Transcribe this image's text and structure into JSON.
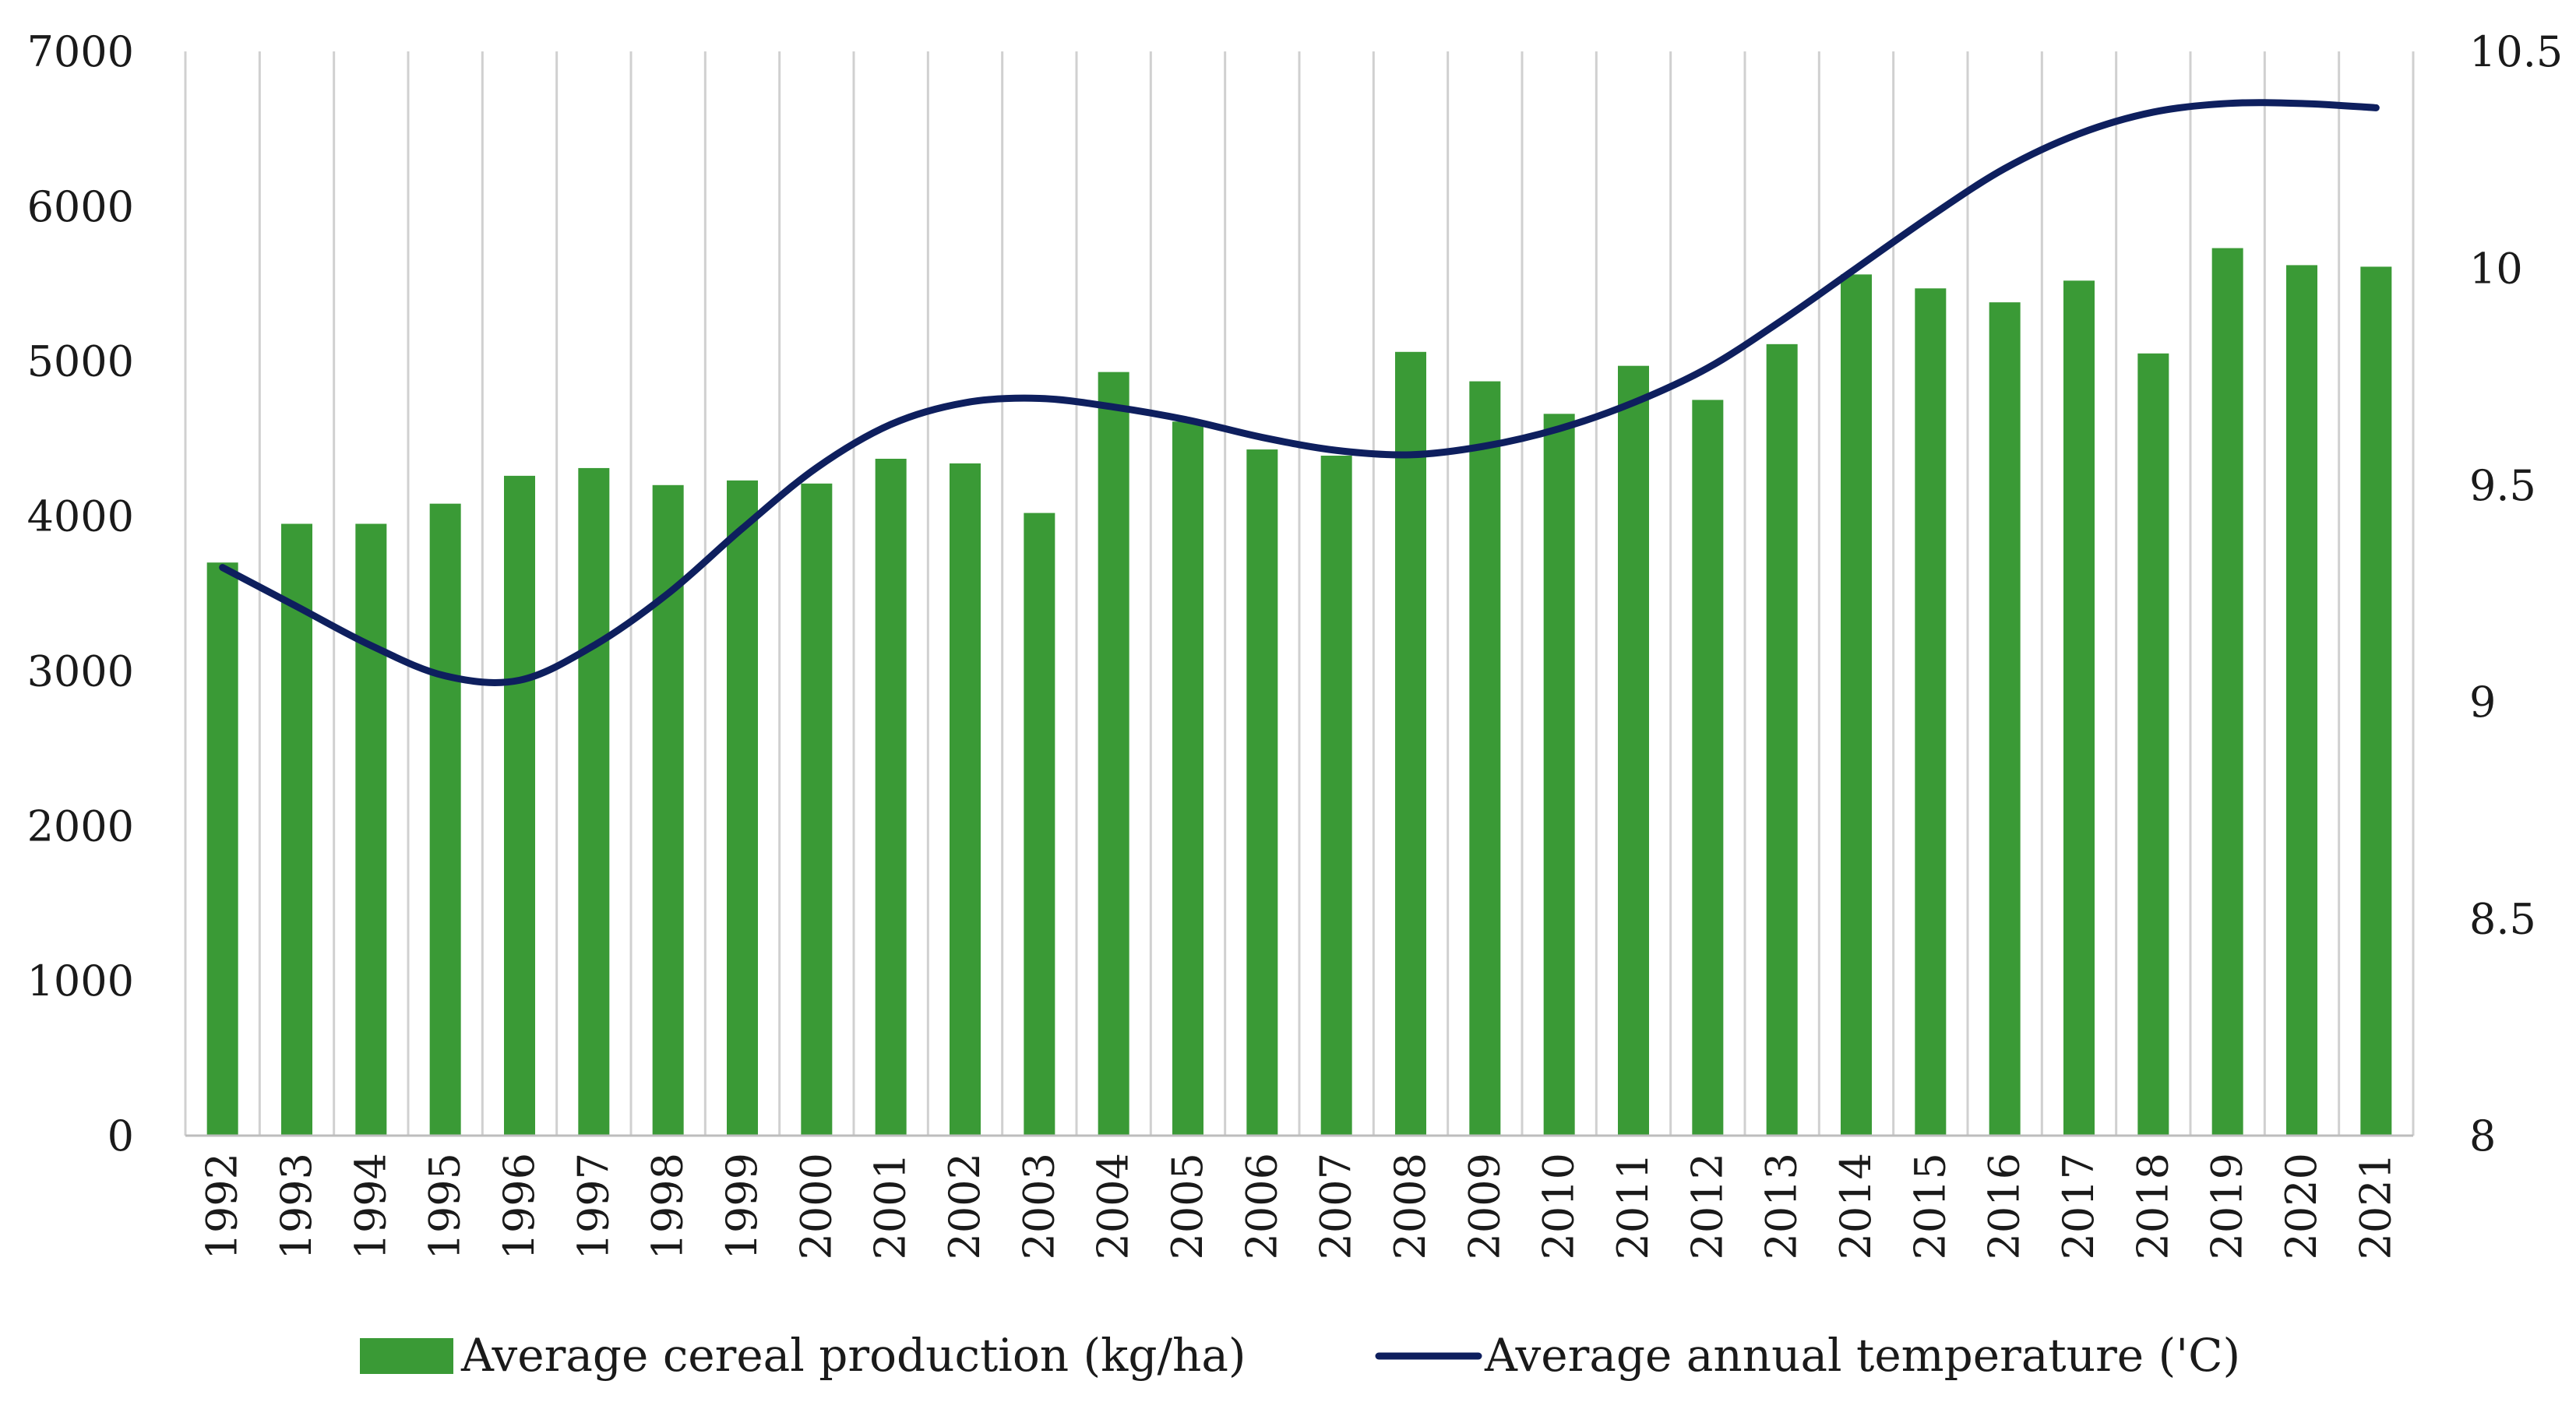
{
  "chart_data": {
    "type": "bar+line",
    "categories": [
      "1992",
      "1993",
      "1994",
      "1995",
      "1996",
      "1997",
      "1998",
      "1999",
      "2000",
      "2001",
      "2002",
      "2003",
      "2004",
      "2005",
      "2006",
      "2007",
      "2008",
      "2009",
      "2010",
      "2011",
      "2012",
      "2013",
      "2014",
      "2015",
      "2016",
      "2017",
      "2018",
      "2019",
      "2020",
      "2021"
    ],
    "series": [
      {
        "name": "Average cereal production (kg/ha)",
        "type": "bar",
        "axis": "left",
        "color": "#3a9a36",
        "values": [
          3700,
          3950,
          3950,
          4080,
          4260,
          4310,
          4200,
          4230,
          4210,
          4370,
          4340,
          4020,
          4930,
          4610,
          4430,
          4390,
          5060,
          4870,
          4660,
          4970,
          4750,
          5110,
          5560,
          5470,
          5380,
          5520,
          5050,
          5730,
          5620,
          5610
        ]
      },
      {
        "name": "Average annual temperature ('C)",
        "type": "line",
        "axis": "right",
        "color": "#0e1f5e",
        "values": [
          9.31,
          9.22,
          9.13,
          9.06,
          9.05,
          9.13,
          9.25,
          9.4,
          9.54,
          9.64,
          9.69,
          9.7,
          9.68,
          9.65,
          9.61,
          9.58,
          9.57,
          9.59,
          9.63,
          9.69,
          9.77,
          9.88,
          10.0,
          10.12,
          10.23,
          10.31,
          10.36,
          10.38,
          10.38,
          10.37
        ]
      }
    ],
    "y_left": {
      "min": 0,
      "max": 7000,
      "ticks": [
        0,
        1000,
        2000,
        3000,
        4000,
        5000,
        6000,
        7000
      ]
    },
    "y_right": {
      "min": 8,
      "max": 10.5,
      "ticks": [
        "8",
        "8.5",
        "9",
        "9.5",
        "10",
        "10.5"
      ]
    },
    "gridlines": "vertical",
    "legend_position": "bottom"
  }
}
